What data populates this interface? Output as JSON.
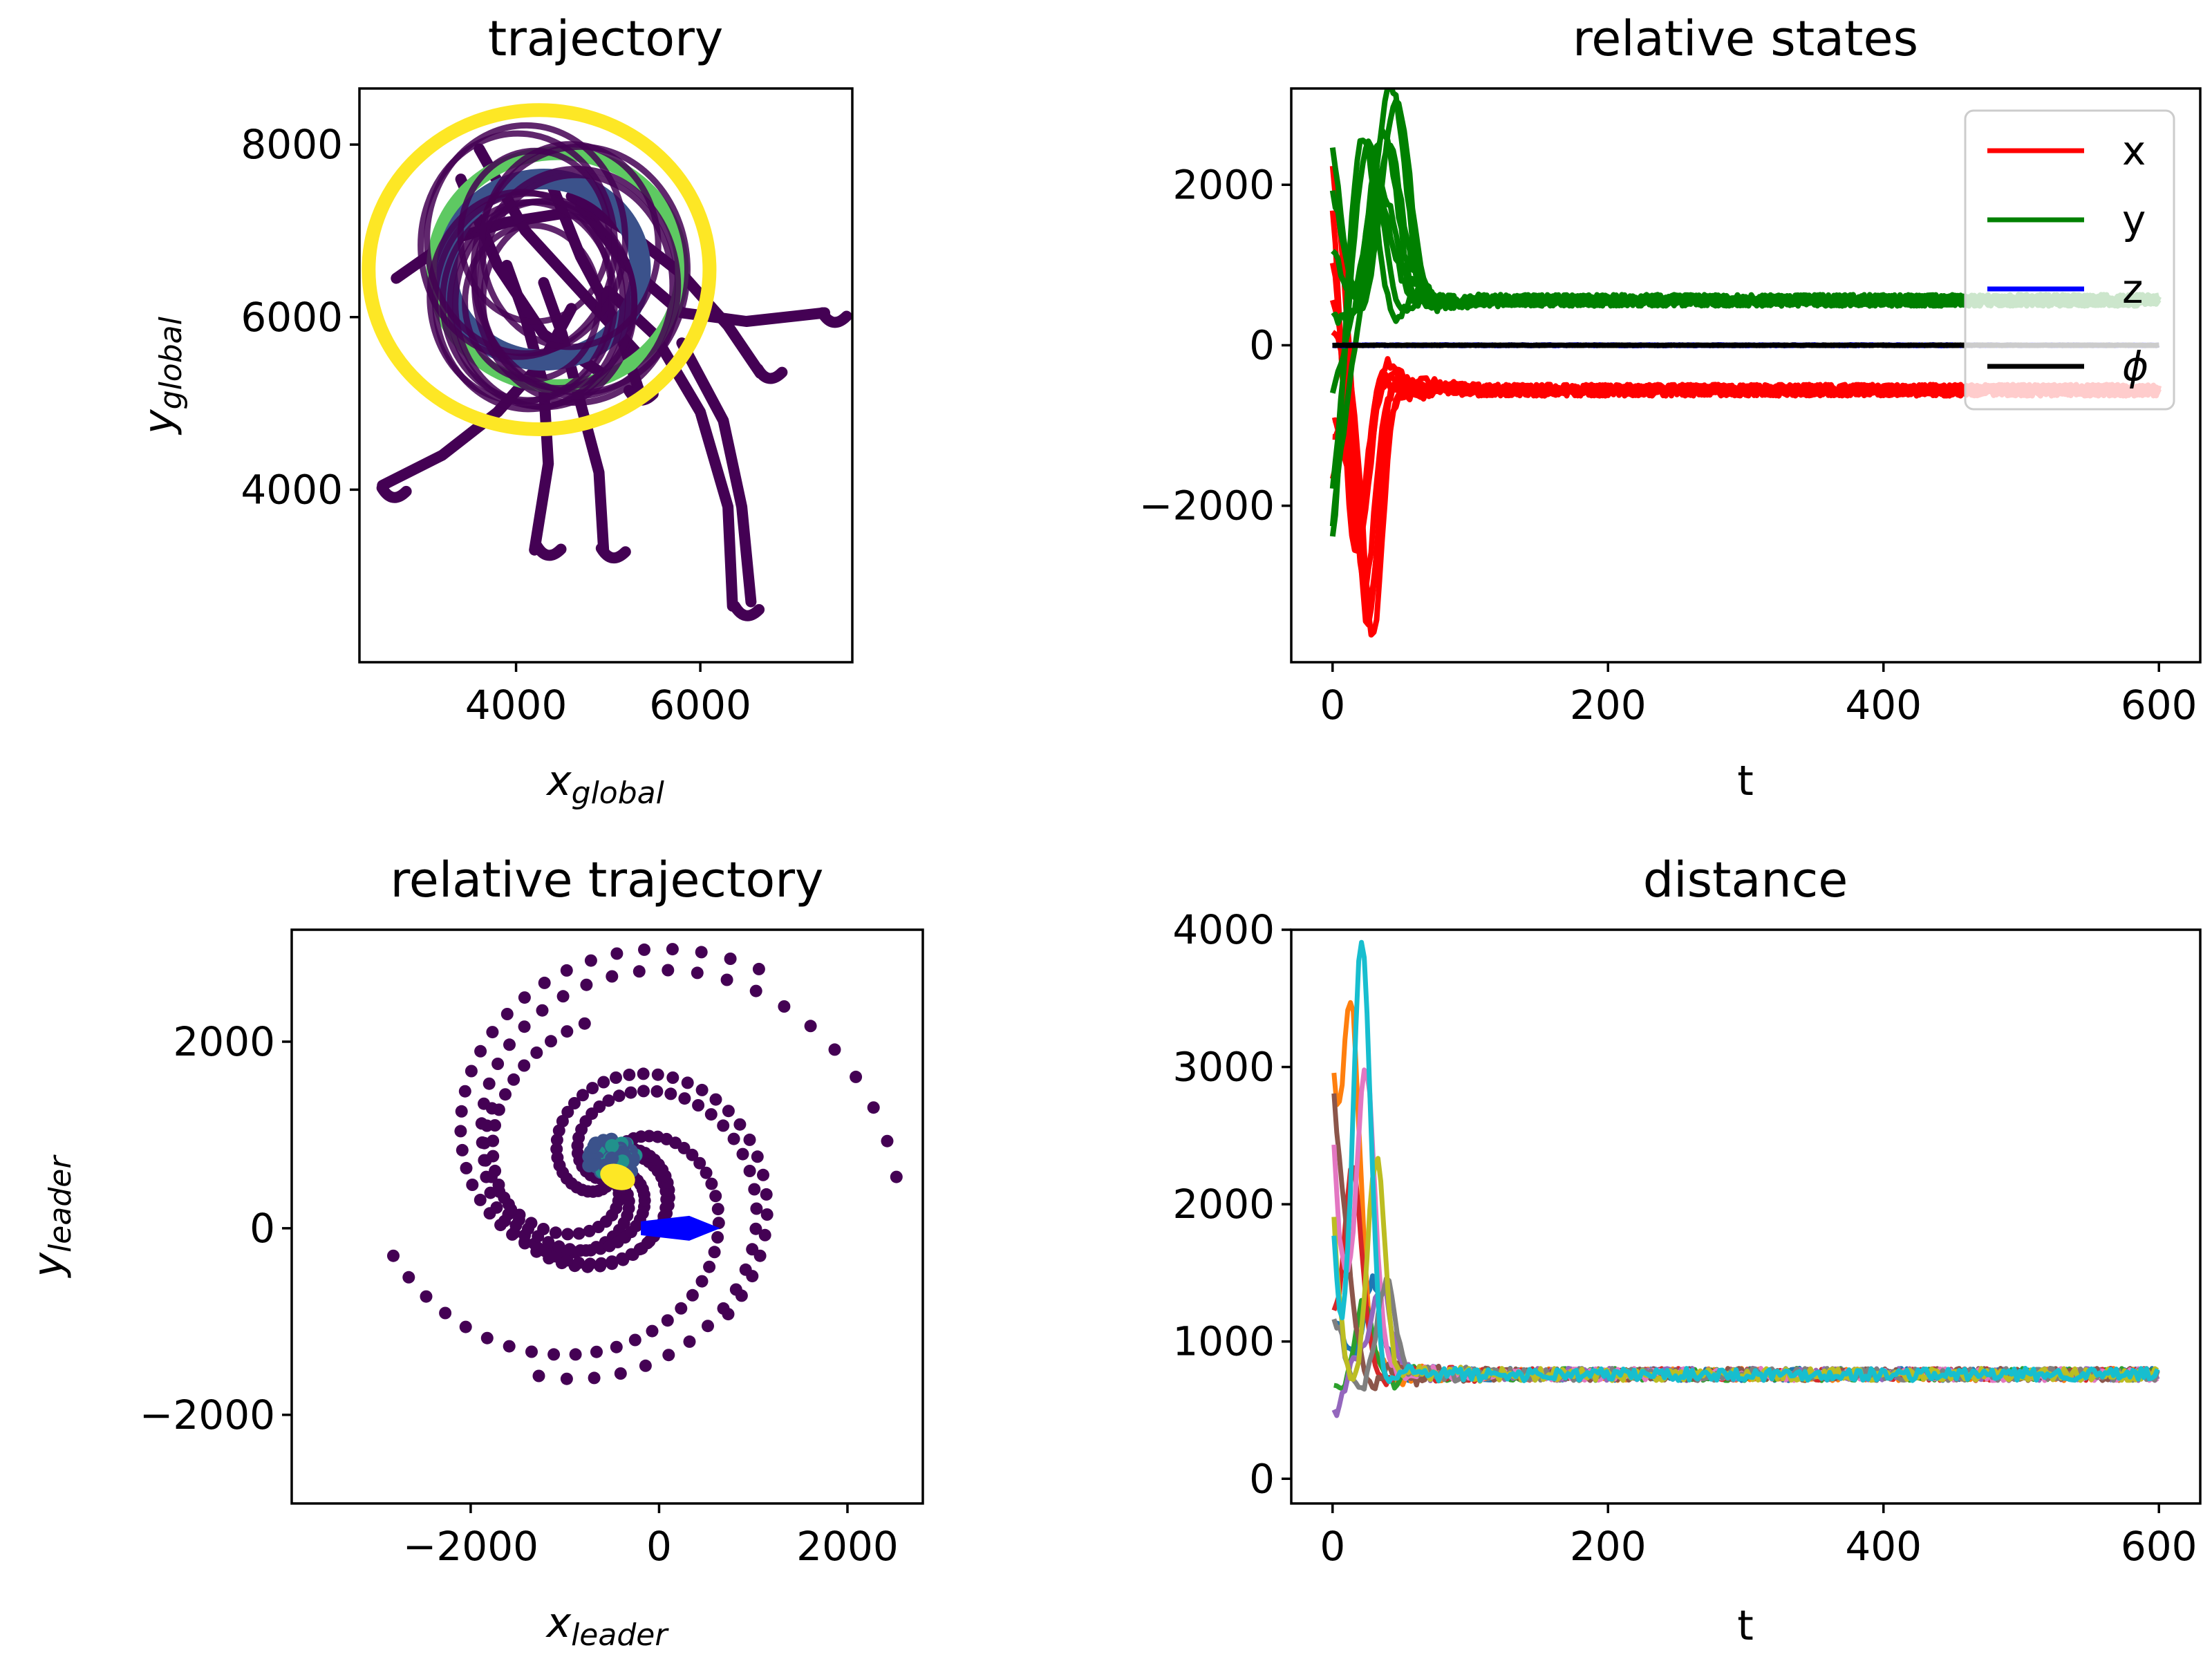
{
  "colors": {
    "viridis_dark": "#440154",
    "viridis_mid": "#3b528b",
    "viridis_teal": "#21918c",
    "viridis_green": "#5ec962",
    "viridis_yellow": "#fde725",
    "leader": "#0000ff",
    "x": "#ff0000",
    "y": "#008000",
    "z": "#0000ff",
    "phi": "#000000",
    "tab10": [
      "#1f77b4",
      "#ff7f0e",
      "#2ca02c",
      "#d62728",
      "#9467bd",
      "#8c564b",
      "#e377c2",
      "#7f7f7f",
      "#bcbd22",
      "#17becf"
    ]
  },
  "chart_data": [
    {
      "id": "trajectory",
      "type": "scatter",
      "title": "trajectory",
      "xlabel_base": "x",
      "xlabel_sub": "global",
      "ylabel_base": "y",
      "ylabel_sub": "global",
      "xlim": [
        2300,
        7650
      ],
      "ylim": [
        2000,
        8650
      ],
      "xticks": [
        4000,
        6000
      ],
      "yticks": [
        4000,
        6000,
        8000
      ],
      "xtick_labels": [
        "4000",
        "6000"
      ],
      "ytick_labels": [
        "4000",
        "6000",
        "8000"
      ],
      "rings": [
        {
          "cx": 4250,
          "cy": 6550,
          "r": 1850,
          "color": "viridis_yellow"
        },
        {
          "cx": 4450,
          "cy": 6550,
          "r": 1350,
          "color": "viridis_green"
        },
        {
          "cx": 4300,
          "cy": 6550,
          "r": 1050,
          "color": "viridis_mid"
        }
      ],
      "paths": [
        [
          [
            2550,
            4050
          ],
          [
            3200,
            4400
          ],
          [
            3800,
            4900
          ],
          [
            4300,
            5500
          ],
          [
            4600,
            6100
          ]
        ],
        [
          [
            4200,
            3300
          ],
          [
            4350,
            4300
          ],
          [
            4300,
            5200
          ],
          [
            4100,
            6000
          ],
          [
            3900,
            6600
          ]
        ],
        [
          [
            4950,
            3300
          ],
          [
            4900,
            4200
          ],
          [
            4700,
            5000
          ],
          [
            4500,
            5800
          ],
          [
            4300,
            6400
          ]
        ],
        [
          [
            6350,
            2650
          ],
          [
            6300,
            3800
          ],
          [
            6000,
            4900
          ],
          [
            5500,
            5800
          ],
          [
            5000,
            6300
          ]
        ],
        [
          [
            6550,
            2700
          ],
          [
            6450,
            3800
          ],
          [
            6250,
            4800
          ],
          [
            5800,
            5700
          ]
        ],
        [
          [
            6650,
            5350
          ],
          [
            6300,
            5900
          ],
          [
            5800,
            6500
          ],
          [
            5200,
            7000
          ],
          [
            4600,
            7400
          ]
        ],
        [
          [
            7350,
            6050
          ],
          [
            6500,
            5950
          ],
          [
            5800,
            6050
          ],
          [
            5200,
            6600
          ],
          [
            4700,
            7300
          ]
        ],
        [
          [
            5350,
            5100
          ],
          [
            5100,
            5900
          ],
          [
            4700,
            6700
          ],
          [
            4400,
            7500
          ]
        ],
        [
          [
            2700,
            6450
          ],
          [
            3300,
            6900
          ],
          [
            3900,
            7100
          ],
          [
            4500,
            7200
          ]
        ],
        [
          [
            3400,
            7600
          ],
          [
            3800,
            6600
          ],
          [
            4300,
            5800
          ],
          [
            5000,
            5300
          ]
        ],
        [
          [
            3600,
            7950
          ],
          [
            4100,
            7000
          ],
          [
            4700,
            6300
          ],
          [
            5300,
            5600
          ]
        ]
      ],
      "hooks": [
        [
          4300,
          3350
        ],
        [
          5000,
          3320
        ],
        [
          6450,
          2650
        ],
        [
          6700,
          5400
        ],
        [
          5300,
          5150
        ],
        [
          2620,
          4020
        ],
        [
          7400,
          6050
        ]
      ]
    },
    {
      "id": "relative_states",
      "type": "line",
      "title": "relative states",
      "xlabel": "t",
      "xlim": [
        -30,
        630
      ],
      "ylim": [
        -3950,
        3200
      ],
      "xticks": [
        0,
        200,
        400,
        600
      ],
      "yticks": [
        -2000,
        0,
        2000
      ],
      "xtick_labels": [
        "0",
        "200",
        "400",
        "600"
      ],
      "ytick_labels": [
        "−2000",
        "0",
        "2000"
      ],
      "legend": [
        "x",
        "y",
        "z",
        "ϕ"
      ],
      "legend_location": "top-right",
      "series": [
        {
          "name": "x",
          "steady": -560,
          "spread": 70,
          "initial": [
            1800,
            1200,
            -900,
            -1600,
            600,
            2200,
            -1200,
            200
          ],
          "dip": -3400
        },
        {
          "name": "y",
          "steady": 560,
          "spread": 70,
          "initial": [
            -2500,
            -1800,
            1200,
            2400,
            -600,
            1900,
            -2200,
            300
          ],
          "peak": 2800
        },
        {
          "name": "z",
          "steady": 0,
          "spread": 15
        },
        {
          "name": "ϕ",
          "steady": 0,
          "spread": 10
        }
      ]
    },
    {
      "id": "relative_trajectory",
      "type": "scatter",
      "title": "relative trajectory",
      "xlabel_base": "x",
      "xlabel_sub": "leader",
      "ylabel_base": "y",
      "ylabel_sub": "leader",
      "xlim": [
        -3900,
        2800
      ],
      "ylim": [
        -2950,
        3200
      ],
      "xticks": [
        -2000,
        0,
        2000
      ],
      "yticks": [
        -2000,
        0,
        2000
      ],
      "xtick_labels": [
        "−2000",
        "0",
        "2000"
      ],
      "ytick_labels": [
        "−2000",
        "0",
        "2000"
      ],
      "spirals": [
        {
          "radius": 2150,
          "start_deg": -110,
          "sweep_deg": 300
        },
        {
          "radius": 1800,
          "start_deg": -50,
          "sweep_deg": 290
        },
        {
          "radius": 2900,
          "start_deg": 0,
          "sweep_deg": 300
        },
        {
          "radius": 2600,
          "start_deg": 55,
          "sweep_deg": 270
        },
        {
          "radius": 1350,
          "start_deg": 150,
          "sweep_deg": 300
        },
        {
          "radius": 1050,
          "start_deg": 200,
          "sweep_deg": 280
        },
        {
          "radius": 2350,
          "start_deg": -160,
          "sweep_deg": 260
        },
        {
          "radius": 1550,
          "start_deg": 100,
          "sweep_deg": 280
        }
      ],
      "spiral_center": [
        -500,
        550
      ],
      "convergence_point": [
        -500,
        550
      ],
      "leader_marker": [
        100,
        0
      ]
    },
    {
      "id": "distance",
      "type": "line",
      "title": "distance",
      "xlabel": "t",
      "xlim": [
        -30,
        630
      ],
      "ylim": [
        -180,
        4000
      ],
      "xticks": [
        0,
        200,
        400,
        600
      ],
      "yticks": [
        0,
        1000,
        2000,
        3000,
        4000
      ],
      "xtick_labels": [
        "0",
        "200",
        "400",
        "600"
      ],
      "ytick_labels": [
        "0",
        "1000",
        "2000",
        "3000",
        "4000"
      ],
      "steady": 760,
      "series_peaks": [
        {
          "start": 1100,
          "peak": 1500,
          "peak_t": 28
        },
        {
          "start": 2700,
          "peak": 3350,
          "peak_t": 14
        },
        {
          "start": 450,
          "peak": 1300,
          "peak_t": 20
        },
        {
          "start": 1150,
          "peak": 2300,
          "peak_t": 14
        },
        {
          "start": 700,
          "peak": 1500,
          "peak_t": 35
        },
        {
          "start": 2600,
          "peak": 1600,
          "peak_t": 5
        },
        {
          "start": 2750,
          "peak": 3100,
          "peak_t": 24
        },
        {
          "start": 1000,
          "peak": 1400,
          "peak_t": 40
        },
        {
          "start": 1800,
          "peak": 2250,
          "peak_t": 32
        },
        {
          "start": 1850,
          "peak": 3800,
          "peak_t": 21
        }
      ]
    }
  ]
}
